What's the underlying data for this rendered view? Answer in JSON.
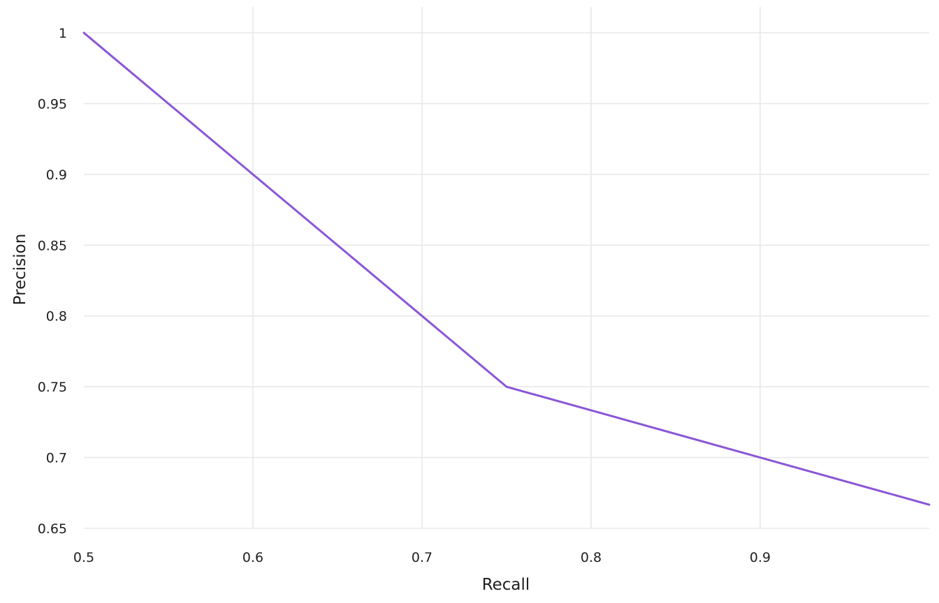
{
  "chart_data": {
    "type": "line",
    "xlabel": "Recall",
    "ylabel": "Precision",
    "xlim": [
      0.5,
      1.0
    ],
    "ylim": [
      0.65,
      1.0
    ],
    "x_ticks": [
      0.5,
      0.6,
      0.7,
      0.8,
      0.9
    ],
    "x_tick_labels": [
      "0.5",
      "0.6",
      "0.7",
      "0.8",
      "0.9"
    ],
    "y_ticks": [
      0.65,
      0.7,
      0.75,
      0.8,
      0.85,
      0.9,
      0.95,
      1.0
    ],
    "y_tick_labels": [
      "0.65",
      "0.7",
      "0.75",
      "0.8",
      "0.85",
      "0.9",
      "0.95",
      "1"
    ],
    "grid": true,
    "legend": "none",
    "series": [
      {
        "color": "#8a56d6",
        "x": [
          0.5,
          0.6,
          0.7,
          0.75,
          0.9,
          1.0
        ],
        "y": [
          1.0,
          0.9,
          0.8,
          0.75,
          0.7,
          0.6667
        ]
      }
    ]
  }
}
